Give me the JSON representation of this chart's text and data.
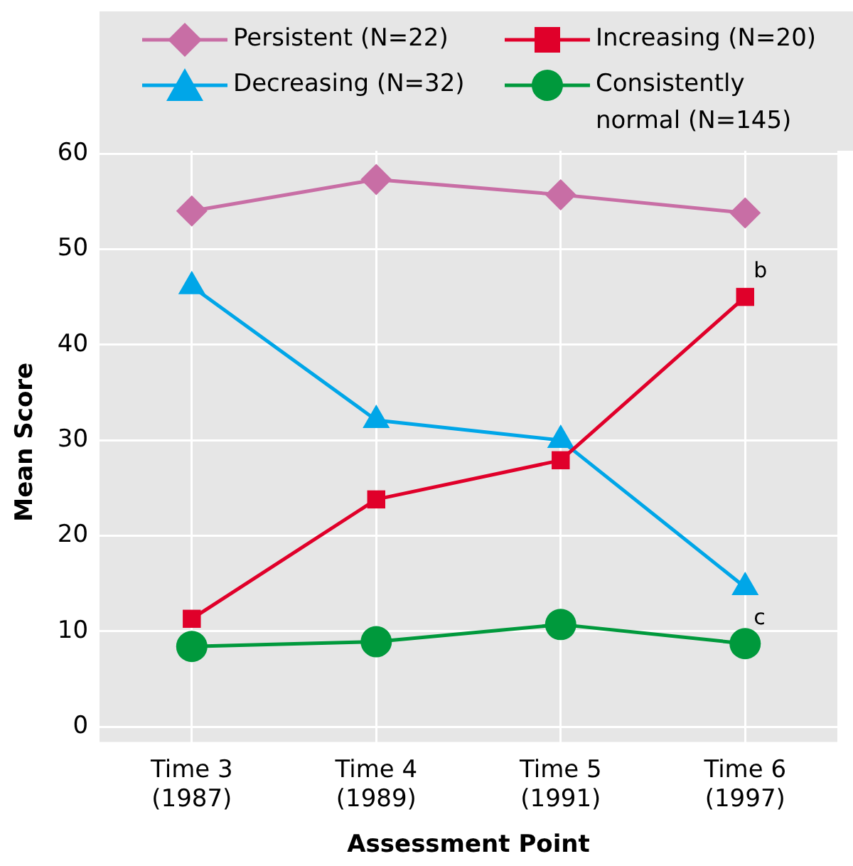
{
  "chart_data": {
    "type": "line",
    "xlabel": "Assessment Point",
    "ylabel": "Mean Score",
    "categories": [
      "Time 3\n(1987)",
      "Time 4\n(1989)",
      "Time 5\n(1991)",
      "Time 6\n(1997)"
    ],
    "series": [
      {
        "name": "Persistent (N=22)",
        "color": "#c86ea5",
        "marker": "diamond",
        "values": [
          54.0,
          57.3,
          55.7,
          53.8
        ]
      },
      {
        "name": "Increasing (N=20)",
        "color": "#e0002a",
        "marker": "square",
        "values": [
          11.3,
          23.8,
          27.9,
          45.0
        ]
      },
      {
        "name": "Decreasing (N=32)",
        "color": "#00a6e8",
        "marker": "triangle",
        "values": [
          46.1,
          32.1,
          30.0,
          14.6
        ]
      },
      {
        "name": "Consistently\nnormal (N=145)",
        "color": "#00993c",
        "marker": "circle",
        "values": [
          8.4,
          8.9,
          10.7,
          8.7
        ]
      }
    ],
    "annotations": [
      {
        "text": "b",
        "x": "Time 6\n(1997)",
        "y": 45.0
      },
      {
        "text": "c",
        "x": "Time 6\n(1997)",
        "y": 8.7
      }
    ],
    "ylim": [
      -1.6,
      61.2
    ],
    "yticks": [
      0,
      10,
      20,
      30,
      40,
      50,
      60
    ],
    "grid": true,
    "legend": "top",
    "line_style": "solid"
  }
}
